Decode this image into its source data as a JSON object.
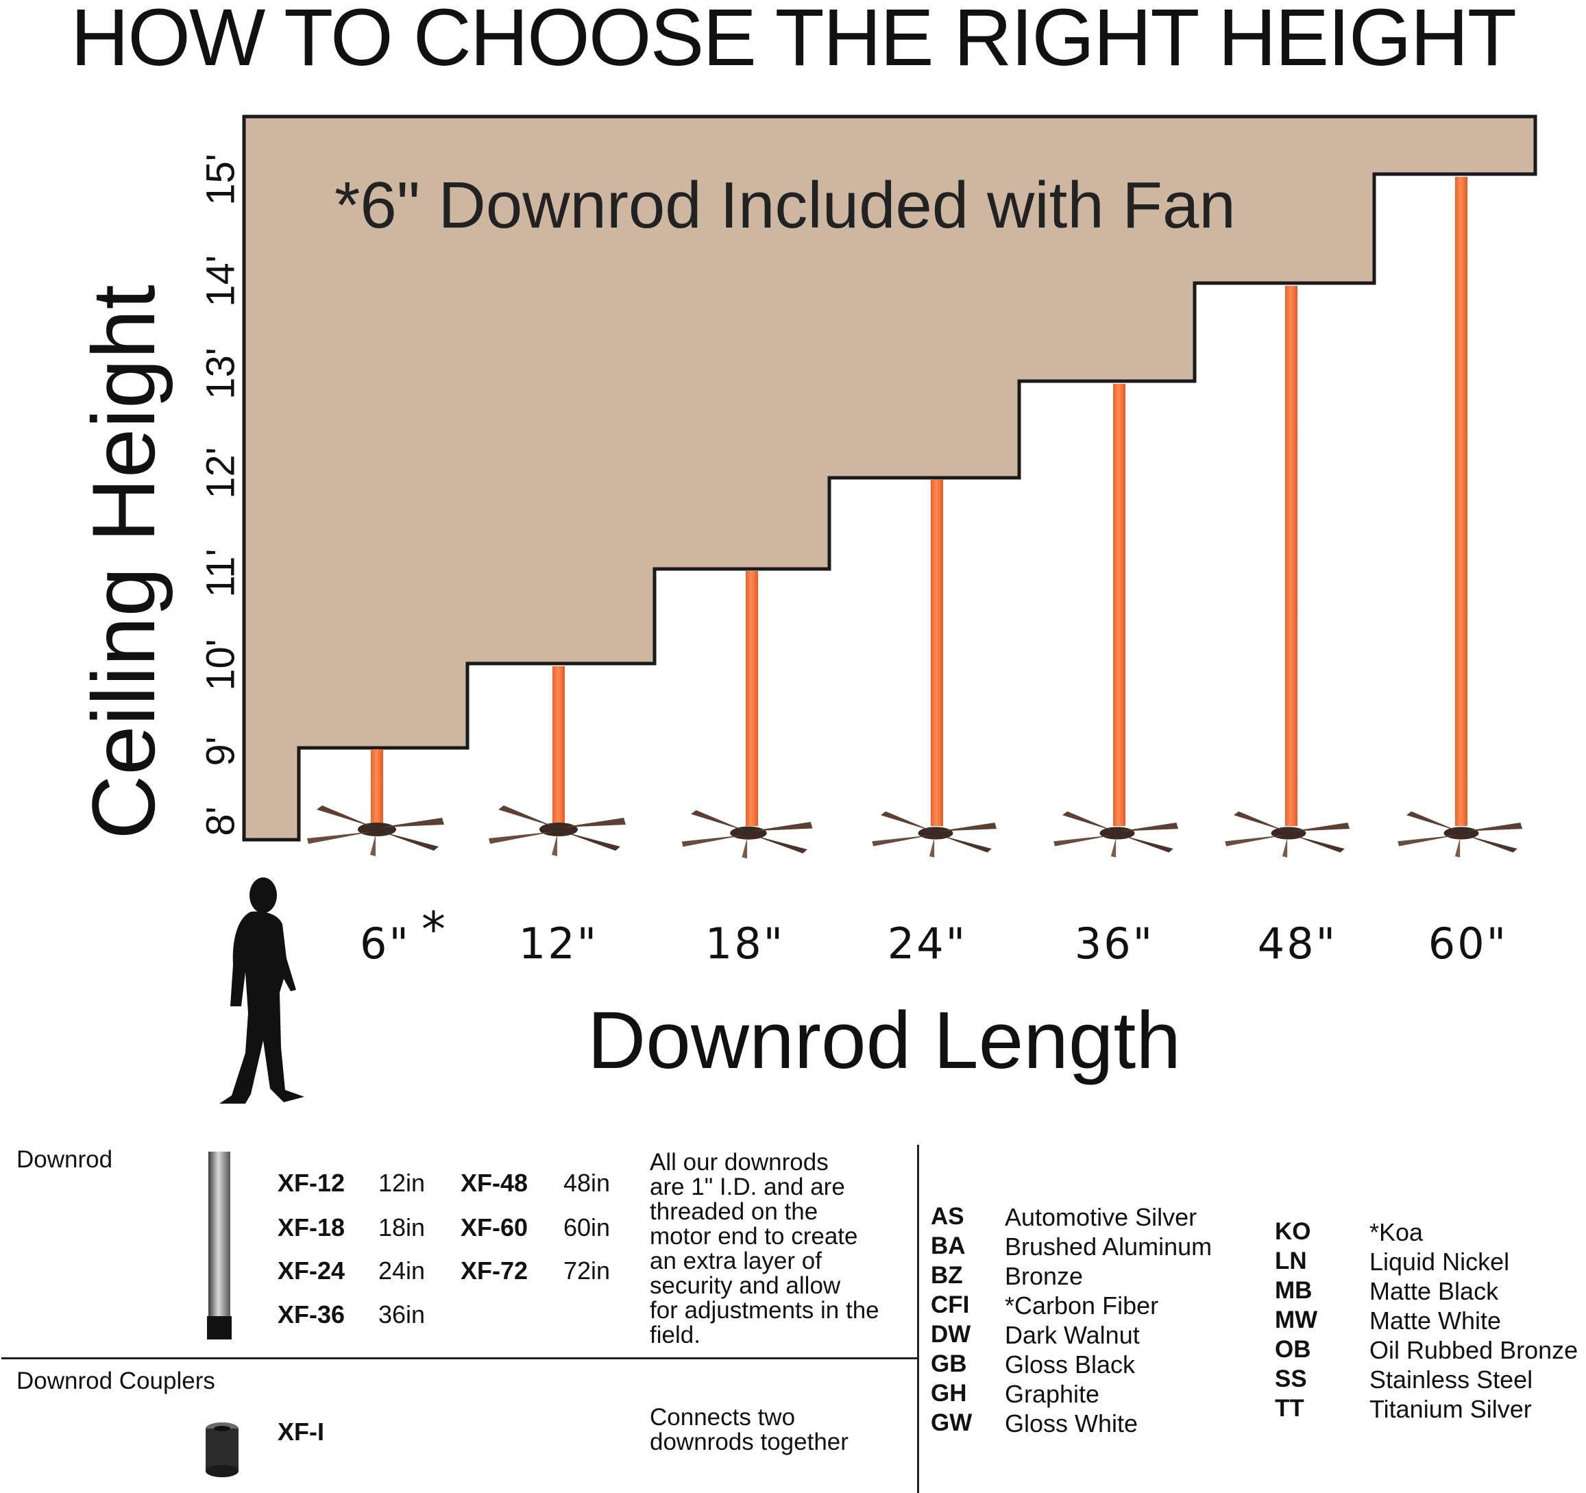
{
  "title": "HOW TO CHOOSE THE RIGHT HEIGHT",
  "y_axis_label": "Ceiling Height",
  "x_axis_label": "Downrod Length",
  "note": "*6\" Downrod Included with Fan",
  "ceiling_ticks": [
    "8'",
    "9'",
    "10'",
    "11'",
    "12'",
    "13'",
    "14'",
    "15'"
  ],
  "downrod_labels": [
    "6\"",
    "12\"",
    "18\"",
    "24\"",
    "36\"",
    "48\"",
    "60\""
  ],
  "included_marker": "*",
  "colors": {
    "stairs": "#cdb7a0",
    "rod": "#f0703a",
    "outline": "#1a1a1a"
  },
  "downrod_section": {
    "title": "Downrod",
    "models": [
      {
        "code": "XF-12",
        "length": "12in"
      },
      {
        "code": "XF-18",
        "length": "18in"
      },
      {
        "code": "XF-24",
        "length": "24in"
      },
      {
        "code": "XF-36",
        "length": "36in"
      },
      {
        "code": "XF-48",
        "length": "48in"
      },
      {
        "code": "XF-60",
        "length": "60in"
      },
      {
        "code": "XF-72",
        "length": "72in"
      }
    ],
    "description": [
      "All our downrods",
      "are 1\" I.D. and are",
      "threaded on the",
      "motor end to create",
      "an extra layer of",
      "security and allow",
      "for adjustments in the",
      "field."
    ]
  },
  "coupler_section": {
    "title": "Downrod Couplers",
    "code": "XF-I",
    "description": [
      "Connects two",
      "downrods together"
    ]
  },
  "finishes_left": [
    {
      "code": "AS",
      "name": "Automotive Silver"
    },
    {
      "code": "BA",
      "name": "Brushed Aluminum"
    },
    {
      "code": "BZ",
      "name": "Bronze"
    },
    {
      "code": "CFI",
      "name": "*Carbon Fiber"
    },
    {
      "code": "DW",
      "name": "Dark Walnut"
    },
    {
      "code": "GB",
      "name": "Gloss Black"
    },
    {
      "code": "GH",
      "name": "Graphite"
    },
    {
      "code": "GW",
      "name": "Gloss White"
    }
  ],
  "finishes_right": [
    {
      "code": "KO",
      "name": "*Koa"
    },
    {
      "code": "LN",
      "name": "Liquid Nickel"
    },
    {
      "code": "MB",
      "name": "Matte Black"
    },
    {
      "code": "MW",
      "name": "Matte White"
    },
    {
      "code": "OB",
      "name": "Oil Rubbed Bronze"
    },
    {
      "code": "SS",
      "name": "Stainless Steel"
    },
    {
      "code": "TT",
      "name": "Titanium Silver"
    }
  ]
}
